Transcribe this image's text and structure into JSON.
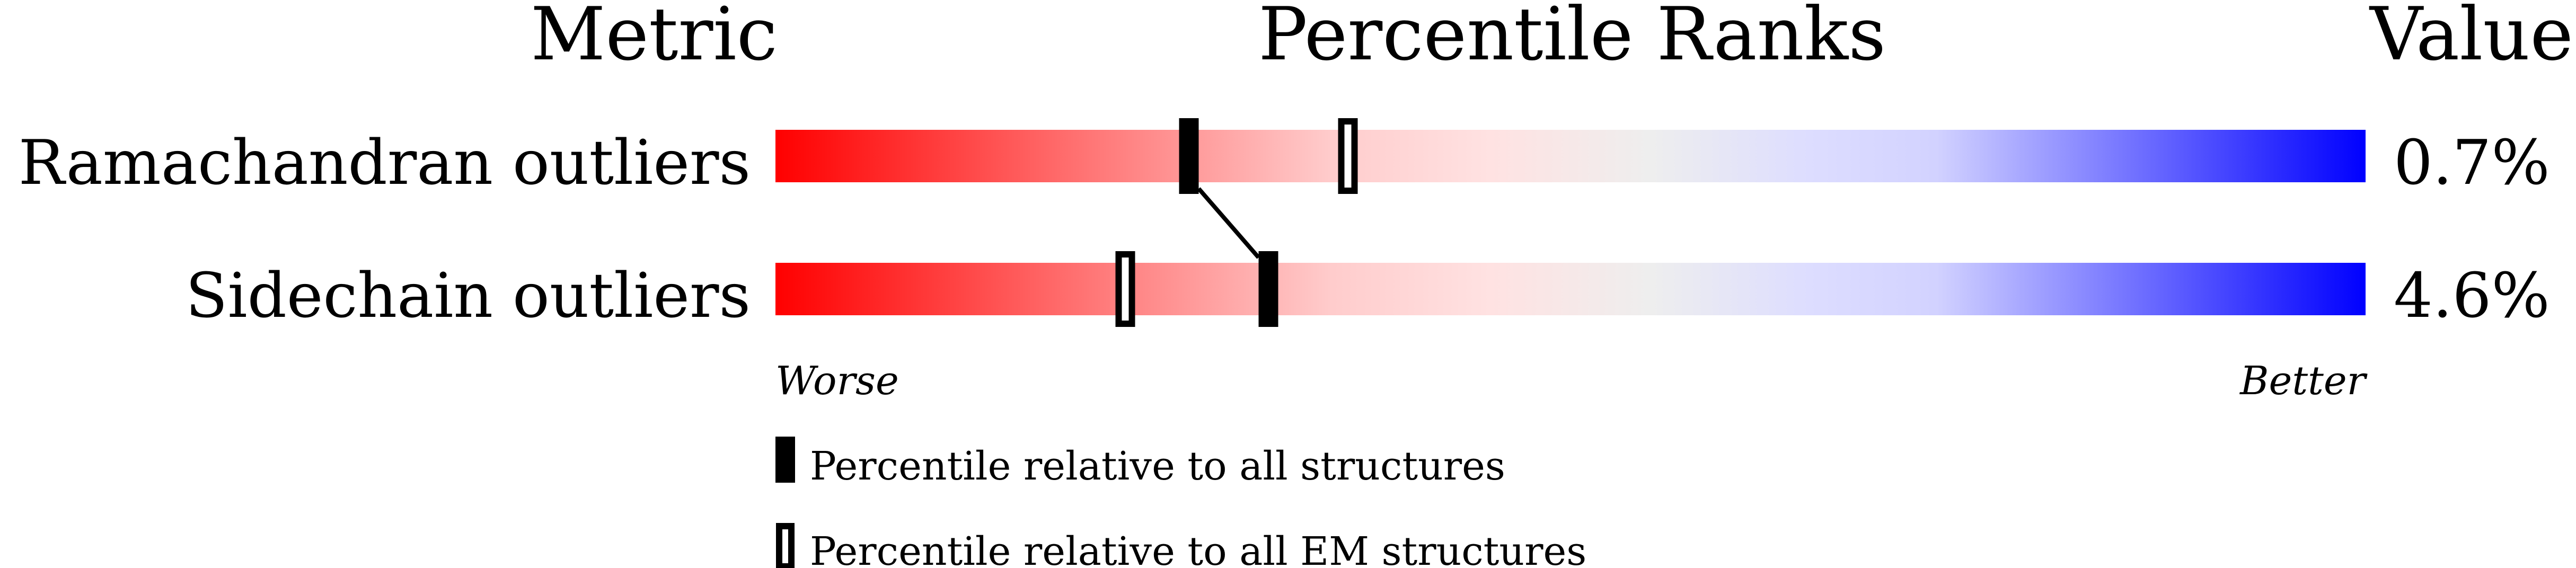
{
  "chart_data": {
    "type": "percentile-bar",
    "headers": {
      "metric": "Metric",
      "ranks": "Percentile Ranks",
      "value": "Value"
    },
    "xlim": [
      0,
      100
    ],
    "axis_labels": {
      "left": "Worse",
      "right": "Better"
    },
    "gradient_colors": [
      "#ff0000",
      "#eeeeee",
      "#0000ff"
    ],
    "rows": [
      {
        "metric": "Ramachandran outliers",
        "value": "0.7%",
        "percentile_all": 26,
        "percentile_em": 36
      },
      {
        "metric": "Sidechain outliers",
        "value": "4.6%",
        "percentile_all": 31,
        "percentile_em": 22
      }
    ],
    "legend": [
      {
        "marker": "filled",
        "label": "Percentile relative to all structures"
      },
      {
        "marker": "hollow",
        "label": "Percentile relative to all EM structures"
      }
    ]
  }
}
